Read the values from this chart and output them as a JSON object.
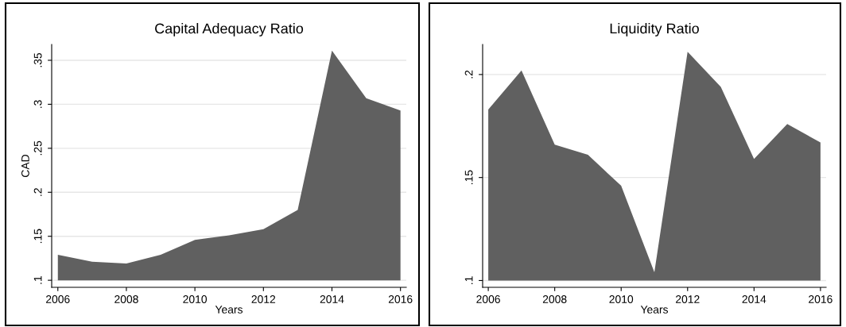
{
  "chart_data": [
    {
      "type": "area",
      "title": "Capital Adequacy Ratio",
      "xlabel": "Years",
      "ylabel": "CAD",
      "x": [
        2006,
        2007,
        2008,
        2009,
        2010,
        2011,
        2012,
        2013,
        2014,
        2015,
        2016
      ],
      "series": [
        {
          "color": "#606060",
          "values": [
            0.129,
            0.121,
            0.119,
            0.129,
            0.146,
            0.151,
            0.158,
            0.18,
            0.361,
            0.307,
            0.293
          ]
        }
      ],
      "xlim": [
        2005.82,
        2016.17
      ],
      "xticks": [
        2006,
        2008,
        2010,
        2012,
        2014,
        2016
      ],
      "ylim": [
        0.092,
        0.368
      ],
      "yticks": [
        {
          "value": 0.1,
          "label": ".1"
        },
        {
          "value": 0.15,
          "label": ".15"
        },
        {
          "value": 0.2,
          "label": ".2"
        },
        {
          "value": 0.25,
          "label": ".25"
        },
        {
          "value": 0.3,
          "label": ".3"
        },
        {
          "value": 0.35,
          "label": ".35"
        }
      ],
      "grid": "y"
    },
    {
      "type": "area",
      "title": "Liquidity Ratio",
      "xlabel": "Years",
      "x": [
        2006,
        2007,
        2008,
        2009,
        2010,
        2011,
        2012,
        2013,
        2014,
        2015,
        2016
      ],
      "series": [
        {
          "color": "#606060",
          "values": [
            0.183,
            0.202,
            0.166,
            0.161,
            0.146,
            0.104,
            0.211,
            0.194,
            0.159,
            0.176,
            0.167
          ]
        }
      ],
      "xlim": [
        2005.83,
        2016.17
      ],
      "xticks": [
        2006,
        2008,
        2010,
        2012,
        2014,
        2016
      ],
      "ylim": [
        0.0967,
        0.2146
      ],
      "yticks": [
        {
          "value": 0.1,
          "label": ".1"
        },
        {
          "value": 0.15,
          "label": ".15"
        },
        {
          "value": 0.2,
          "label": ".2"
        }
      ],
      "grid": "y"
    }
  ]
}
